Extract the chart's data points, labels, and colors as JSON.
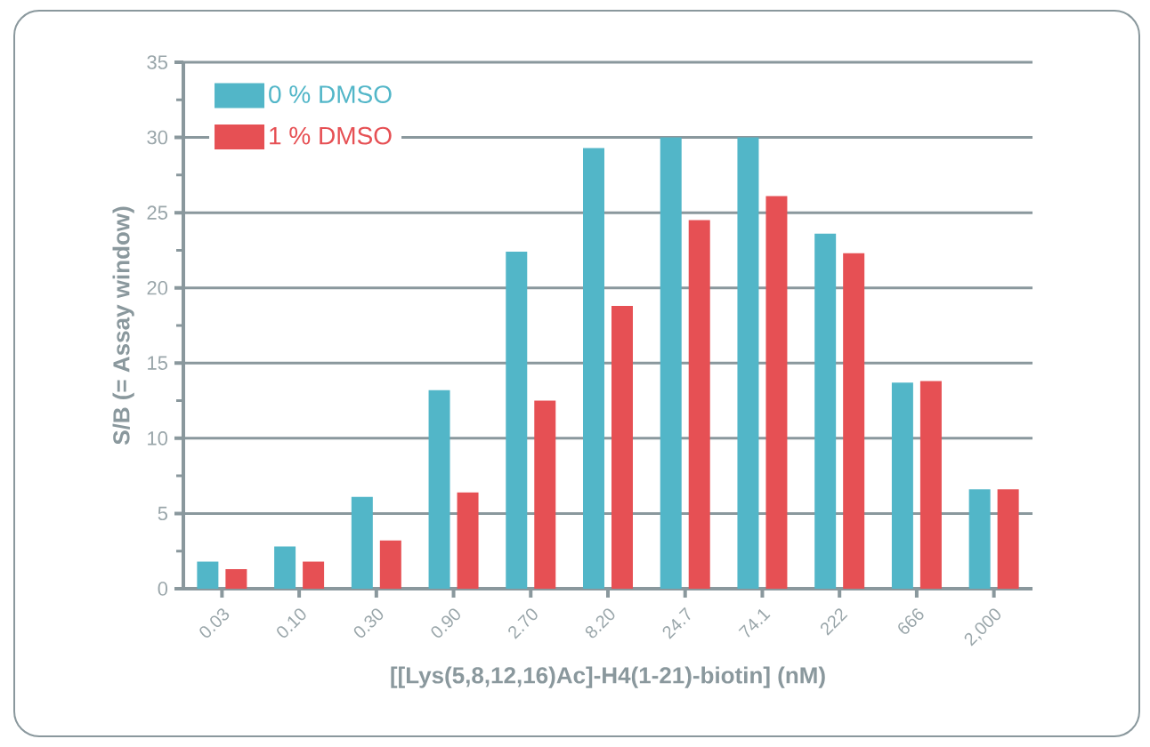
{
  "chart_data": {
    "type": "bar",
    "xlabel": "[[Lys(5,8,12,16)Ac]-H4(1-21)-biotin] (nM)",
    "ylabel": "S/B (= Assay window)",
    "categories": [
      "0.03",
      "0.10",
      "0.30",
      "0.90",
      "2.70",
      "8.20",
      "24.7",
      "74.1",
      "222",
      "666",
      "2,000"
    ],
    "series": [
      {
        "name": "0 % DMSO",
        "color": "#52b6c8",
        "values": [
          1.8,
          2.8,
          6.1,
          13.2,
          22.4,
          29.3,
          30.0,
          30.0,
          23.6,
          13.7,
          6.6
        ]
      },
      {
        "name": "1 % DMSO",
        "color": "#e65054",
        "values": [
          1.3,
          1.8,
          3.2,
          6.4,
          12.5,
          18.8,
          24.5,
          26.1,
          22.3,
          13.8,
          6.6
        ]
      }
    ],
    "ylim": [
      0,
      35
    ],
    "yticks": [
      0,
      5,
      10,
      15,
      20,
      25,
      30,
      35
    ],
    "grid": "y",
    "legend": "top left"
  }
}
